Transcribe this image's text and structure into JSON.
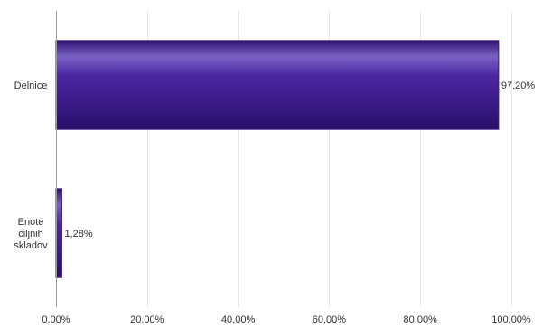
{
  "chart_data": {
    "type": "bar",
    "orientation": "horizontal",
    "categories": [
      [
        "Delnice"
      ],
      [
        "Enote",
        "ciljnih",
        "skladov"
      ]
    ],
    "values": [
      97.2,
      1.28
    ],
    "value_labels": [
      "97,20%",
      "1,28%"
    ],
    "xlim": [
      0,
      100
    ],
    "x_ticks": [
      0,
      20,
      40,
      60,
      80,
      100
    ],
    "x_tick_labels": [
      "0,00%",
      "20,00%",
      "40,00%",
      "60,00%",
      "80,00%",
      "100,00%"
    ],
    "grid": "vertical",
    "legend": "none",
    "bar_color": "#3f1b86",
    "bar_highlight": "#7a62c4"
  }
}
